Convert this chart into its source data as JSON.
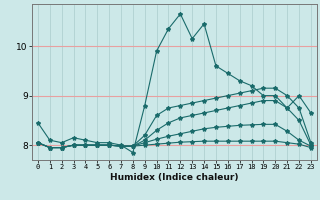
{
  "xlabel": "Humidex (Indice chaleur)",
  "bg_color": "#cce8e8",
  "line_color": "#1a6b6b",
  "grid_color_h": "#e8a0a0",
  "grid_color_v": "#aacccc",
  "xlim": [
    -0.5,
    23.5
  ],
  "ylim": [
    7.7,
    10.85
  ],
  "yticks": [
    8,
    9,
    10
  ],
  "xticks": [
    0,
    1,
    2,
    3,
    4,
    5,
    6,
    7,
    8,
    9,
    10,
    11,
    12,
    13,
    14,
    15,
    16,
    17,
    18,
    19,
    20,
    21,
    22,
    23
  ],
  "series": [
    [
      8.45,
      8.1,
      8.05,
      8.15,
      8.1,
      8.05,
      8.05,
      8.0,
      7.85,
      8.8,
      9.9,
      10.35,
      10.65,
      10.15,
      10.45,
      9.6,
      9.45,
      9.3,
      9.2,
      9.0,
      9.0,
      8.75,
      9.0,
      8.65
    ],
    [
      8.05,
      7.95,
      7.95,
      8.0,
      8.0,
      8.0,
      8.0,
      7.98,
      7.98,
      8.2,
      8.6,
      8.75,
      8.8,
      8.85,
      8.9,
      8.95,
      9.0,
      9.05,
      9.1,
      9.15,
      9.15,
      9.0,
      8.75,
      8.05
    ],
    [
      8.05,
      7.95,
      7.95,
      8.0,
      8.0,
      8.0,
      8.0,
      7.98,
      7.98,
      8.1,
      8.3,
      8.45,
      8.55,
      8.6,
      8.65,
      8.7,
      8.75,
      8.8,
      8.85,
      8.9,
      8.9,
      8.75,
      8.5,
      8.0
    ],
    [
      8.05,
      7.95,
      7.95,
      8.0,
      8.0,
      8.0,
      8.0,
      7.98,
      7.98,
      8.05,
      8.12,
      8.18,
      8.23,
      8.28,
      8.33,
      8.36,
      8.38,
      8.4,
      8.41,
      8.42,
      8.42,
      8.28,
      8.1,
      7.98
    ],
    [
      8.05,
      7.95,
      7.95,
      8.0,
      8.0,
      8.0,
      8.0,
      7.98,
      7.98,
      8.0,
      8.02,
      8.04,
      8.06,
      8.07,
      8.08,
      8.08,
      8.08,
      8.08,
      8.08,
      8.08,
      8.08,
      8.05,
      8.02,
      7.95
    ]
  ]
}
